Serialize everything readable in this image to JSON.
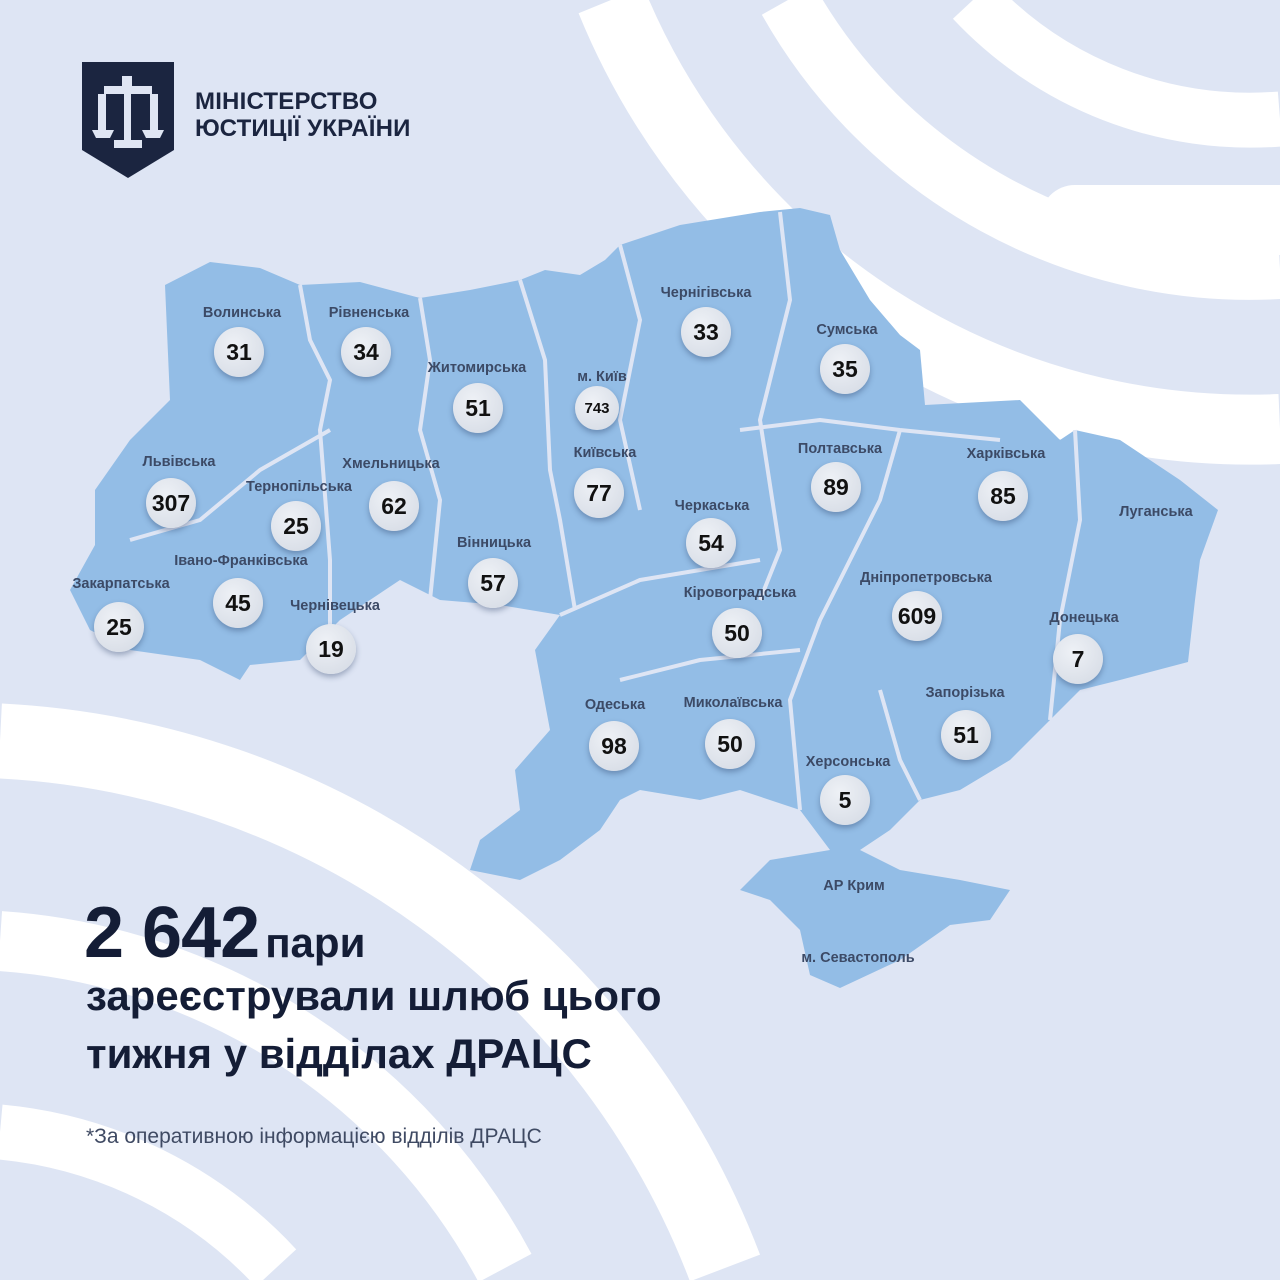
{
  "organization": {
    "line1": "МІНІСТЕРСТВО",
    "line2": "ЮСТИЦІЇ УКРАЇНИ"
  },
  "colors": {
    "background": "#dee5f4",
    "map_fill": "#93bde6",
    "text_dark": "#141d36",
    "badge": "#dfe3ea"
  },
  "regions": [
    {
      "name": "Волинська",
      "value": "31"
    },
    {
      "name": "Рівненська",
      "value": "34"
    },
    {
      "name": "Житомирська",
      "value": "51"
    },
    {
      "name": "м. Київ",
      "value": "743"
    },
    {
      "name": "Київська",
      "value": "77"
    },
    {
      "name": "Чернігівська",
      "value": "33"
    },
    {
      "name": "Сумська",
      "value": "35"
    },
    {
      "name": "Полтавська",
      "value": "89"
    },
    {
      "name": "Харківська",
      "value": "85"
    },
    {
      "name": "Луганська",
      "value": null
    },
    {
      "name": "Львівська",
      "value": "307"
    },
    {
      "name": "Тернопільська",
      "value": "25"
    },
    {
      "name": "Хмельницька",
      "value": "62"
    },
    {
      "name": "Черкаська",
      "value": "54"
    },
    {
      "name": "Вінницька",
      "value": "57"
    },
    {
      "name": "Івано-Франківська",
      "value": "45"
    },
    {
      "name": "Закарпатська",
      "value": "25"
    },
    {
      "name": "Чернівецька",
      "value": "19"
    },
    {
      "name": "Кіровоградська",
      "value": "50"
    },
    {
      "name": "Дніпропетровська",
      "value": "609"
    },
    {
      "name": "Донецька",
      "value": "7"
    },
    {
      "name": "Одеська",
      "value": "98"
    },
    {
      "name": "Миколаївська",
      "value": "50"
    },
    {
      "name": "Запорізька",
      "value": "51"
    },
    {
      "name": "Херсонська",
      "value": "5"
    },
    {
      "name": "АР Крим",
      "value": null
    },
    {
      "name": "м. Севастополь",
      "value": null
    }
  ],
  "headline": {
    "total": "2 642",
    "unit": "пари",
    "line2": "зареєстрували шлюб цього",
    "line3": "тижня у відділах ДРАЦС"
  },
  "footnote": "*За оперативною інформацією відділів ДРАЦС"
}
